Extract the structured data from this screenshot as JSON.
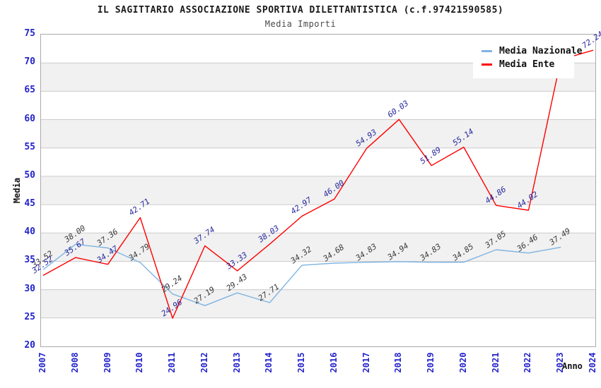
{
  "window": {
    "title": "IL SAGITTARIO ASSOCIAZIONE SPORTIVA DILETTANTISTICA (c.f.97421590585)",
    "subtitle": "Media Importi"
  },
  "colors": {
    "nazionale_line": "#7EB4E2",
    "ente_line": "#FF0000",
    "tick_label": "#2323CC",
    "nazionale_point_label": "#3A3A3A",
    "ente_point_label": "#28289E",
    "band_fill": "#F1F1F1",
    "gridline": "#CCCCCC"
  },
  "chart_data": {
    "type": "line",
    "title": "IL SAGITTARIO ASSOCIAZIONE SPORTIVA DILETTANTISTICA (c.f.97421590585)",
    "subtitle": "Media Importi",
    "xlabel": "Anno",
    "ylabel": "Media",
    "ylim": [
      20,
      75
    ],
    "yticks": [
      75,
      70,
      65,
      60,
      55,
      50,
      45,
      40,
      35,
      30,
      25,
      20
    ],
    "x": [
      2007,
      2008,
      2009,
      2010,
      2011,
      2012,
      2013,
      2014,
      2015,
      2016,
      2017,
      2018,
      2019,
      2020,
      2021,
      2022,
      2023,
      2024
    ],
    "grid": "horizontal-with-alternating-bands",
    "legend_position": "top-right",
    "series": [
      {
        "name": "Media Nazionale",
        "color": "#7EB4E2",
        "label_color": "#3A3A3A",
        "values": [
          33.52,
          38.0,
          37.36,
          34.79,
          29.24,
          27.19,
          29.43,
          27.71,
          34.32,
          34.68,
          34.83,
          34.94,
          34.83,
          34.85,
          37.05,
          36.46,
          37.49
        ],
        "labels": [
          "33.52",
          "38.00",
          "37.36",
          "34.79",
          "29.24",
          "27.19",
          "29.43",
          "27.71",
          "34.32",
          "34.68",
          "34.83",
          "34.94",
          "34.83",
          "34.85",
          "37.05",
          "36.46",
          "37.49"
        ]
      },
      {
        "name": "Media Ente",
        "color": "#FF0000",
        "label_color": "#28289E",
        "values": [
          32.52,
          35.67,
          34.47,
          42.71,
          24.96,
          37.74,
          33.33,
          38.03,
          42.97,
          46.0,
          54.93,
          60.03,
          51.89,
          55.14,
          44.86,
          44.02,
          70.6,
          72.24
        ],
        "labels": [
          "32.52",
          "35.67",
          "34.47",
          "42.71",
          "24.96",
          "37.74",
          "33.33",
          "38.03",
          "42.97",
          "46.00",
          "54.93",
          "60.03",
          "51.89",
          "55.14",
          "44.86",
          "44.02",
          null,
          "72.24"
        ]
      }
    ]
  }
}
